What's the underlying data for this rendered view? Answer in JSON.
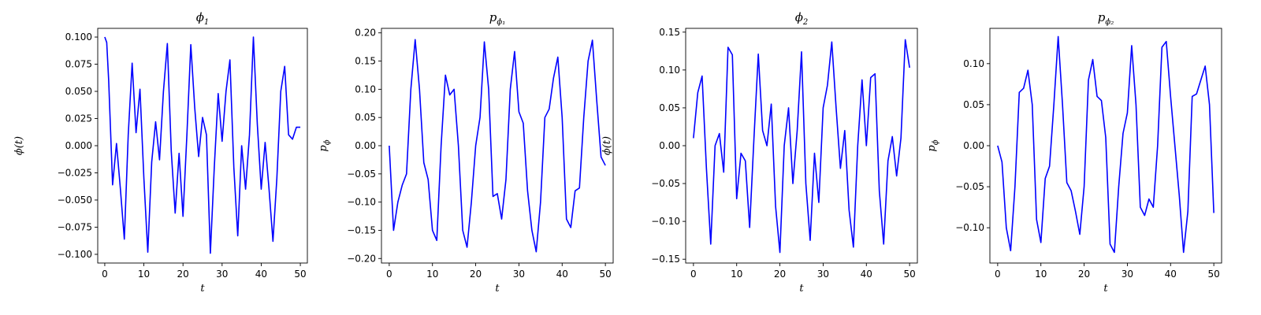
{
  "figure": {
    "background": "#ffffff",
    "line_color": "#0000ff"
  },
  "chart_data": [
    {
      "type": "line",
      "title": "ϕ",
      "title_sub": "1",
      "xlabel": "t",
      "ylabel": "ϕ(t)",
      "ylabel_sub": "",
      "xlim": [
        -1.8,
        51.8
      ],
      "ylim": [
        -0.108,
        0.108
      ],
      "xticks": [
        0,
        10,
        20,
        30,
        40,
        50
      ],
      "yticks": [
        -0.1,
        -0.075,
        -0.05,
        -0.025,
        0.0,
        0.025,
        0.05,
        0.075,
        0.1
      ],
      "ytick_labels": [
        "−0.100",
        "−0.075",
        "−0.050",
        "−0.025",
        "0.000",
        "0.025",
        "0.050",
        "0.075",
        "0.100"
      ],
      "series": [
        {
          "color": "#0000ff",
          "x": [
            0,
            0.5,
            1,
            2,
            3,
            4,
            5,
            6,
            7,
            8,
            9,
            10,
            11,
            12,
            13,
            14,
            15,
            16,
            17,
            18,
            19,
            20,
            21,
            22,
            23,
            24,
            25,
            26,
            27,
            28,
            29,
            30,
            31,
            32,
            33,
            34,
            35,
            36,
            37,
            38,
            39,
            40,
            41,
            42,
            43,
            44,
            45,
            46,
            47,
            48,
            49,
            50
          ],
          "y": [
            0.1,
            0.095,
            0.06,
            -0.036,
            0.002,
            -0.04,
            -0.086,
            0.01,
            0.076,
            0.012,
            0.052,
            -0.03,
            -0.098,
            -0.015,
            0.022,
            -0.013,
            0.05,
            0.094,
            -0.005,
            -0.062,
            -0.007,
            -0.065,
            0.01,
            0.093,
            0.035,
            -0.01,
            0.026,
            0.01,
            -0.099,
            -0.02,
            0.048,
            0.004,
            0.05,
            0.079,
            -0.02,
            -0.083,
            0.0,
            -0.04,
            0.01,
            0.1,
            0.02,
            -0.04,
            0.003,
            -0.04,
            -0.088,
            -0.03,
            0.05,
            0.073,
            0.01,
            0.006,
            0.017,
            0.017
          ]
        }
      ]
    },
    {
      "type": "line",
      "title": "p",
      "title_sub": "ϕ₁",
      "xlabel": "t",
      "ylabel": "p",
      "ylabel_sub": "ϕ",
      "xlim": [
        -1.8,
        51.8
      ],
      "ylim": [
        -0.208,
        0.208
      ],
      "xticks": [
        0,
        10,
        20,
        30,
        40,
        50
      ],
      "yticks": [
        -0.2,
        -0.15,
        -0.1,
        -0.05,
        0.0,
        0.05,
        0.1,
        0.15,
        0.2
      ],
      "ytick_labels": [
        "−0.20",
        "−0.15",
        "−0.10",
        "−0.05",
        "0.00",
        "0.05",
        "0.10",
        "0.15",
        "0.20"
      ],
      "series": [
        {
          "color": "#0000ff",
          "x": [
            0,
            1,
            2,
            3,
            4,
            5,
            6,
            7,
            8,
            9,
            10,
            11,
            12,
            13,
            14,
            15,
            16,
            17,
            18,
            19,
            20,
            21,
            22,
            23,
            24,
            25,
            26,
            27,
            28,
            29,
            30,
            31,
            32,
            33,
            34,
            35,
            36,
            37,
            38,
            39,
            40,
            41,
            42,
            43,
            44,
            45,
            46,
            47,
            48,
            49,
            50
          ],
          "y": [
            0.0,
            -0.15,
            -0.1,
            -0.07,
            -0.05,
            0.1,
            0.188,
            0.1,
            -0.03,
            -0.06,
            -0.15,
            -0.168,
            0.0,
            0.125,
            0.09,
            0.1,
            0.0,
            -0.15,
            -0.18,
            -0.1,
            0.0,
            0.05,
            0.184,
            0.1,
            -0.09,
            -0.085,
            -0.13,
            -0.06,
            0.1,
            0.167,
            0.06,
            0.04,
            -0.08,
            -0.15,
            -0.188,
            -0.1,
            0.05,
            0.065,
            0.12,
            0.157,
            0.05,
            -0.13,
            -0.145,
            -0.08,
            -0.075,
            0.05,
            0.15,
            0.187,
            0.08,
            -0.02,
            -0.035
          ]
        }
      ]
    },
    {
      "type": "line",
      "title": "ϕ",
      "title_sub": "2",
      "xlabel": "t",
      "ylabel": "ϕ(t)",
      "ylabel_sub": "",
      "xlim": [
        -1.8,
        51.8
      ],
      "ylim": [
        -0.155,
        0.155
      ],
      "xticks": [
        0,
        10,
        20,
        30,
        40,
        50
      ],
      "yticks": [
        -0.15,
        -0.1,
        -0.05,
        0.0,
        0.05,
        0.1,
        0.15
      ],
      "ytick_labels": [
        "−0.15",
        "−0.10",
        "−0.05",
        "0.00",
        "0.05",
        "0.10",
        "0.15"
      ],
      "series": [
        {
          "color": "#0000ff",
          "x": [
            0,
            1,
            2,
            3,
            4,
            5,
            6,
            7,
            8,
            9,
            10,
            11,
            12,
            13,
            14,
            15,
            16,
            17,
            18,
            19,
            20,
            21,
            22,
            23,
            24,
            25,
            26,
            27,
            28,
            29,
            30,
            31,
            32,
            33,
            34,
            35,
            36,
            37,
            38,
            39,
            40,
            41,
            42,
            43,
            44,
            45,
            46,
            47,
            48,
            49,
            50
          ],
          "y": [
            0.01,
            0.07,
            0.092,
            -0.03,
            -0.13,
            0.0,
            0.016,
            -0.035,
            0.13,
            0.12,
            -0.07,
            -0.01,
            -0.02,
            -0.108,
            0.01,
            0.121,
            0.02,
            0.0,
            0.055,
            -0.08,
            -0.141,
            0.0,
            0.05,
            -0.05,
            0.02,
            0.124,
            -0.05,
            -0.125,
            -0.01,
            -0.075,
            0.05,
            0.08,
            0.137,
            0.05,
            -0.03,
            0.02,
            -0.085,
            -0.134,
            0.0,
            0.087,
            0.0,
            0.09,
            0.095,
            -0.06,
            -0.13,
            -0.02,
            0.012,
            -0.04,
            0.01,
            0.14,
            0.103
          ]
        }
      ]
    },
    {
      "type": "line",
      "title": "p",
      "title_sub": "ϕ₂",
      "xlabel": "t",
      "ylabel": "p",
      "ylabel_sub": "ϕ",
      "xlim": [
        -1.8,
        51.8
      ],
      "ylim": [
        -0.143,
        0.143
      ],
      "xticks": [
        0,
        10,
        20,
        30,
        40,
        50
      ],
      "yticks": [
        -0.1,
        -0.05,
        0.0,
        0.05,
        0.1
      ],
      "ytick_labels": [
        "−0.10",
        "−0.05",
        "0.00",
        "0.05",
        "0.10"
      ],
      "series": [
        {
          "color": "#0000ff",
          "x": [
            0,
            1,
            2,
            3,
            4,
            5,
            6,
            7,
            8,
            9,
            10,
            11,
            12,
            13,
            14,
            15,
            16,
            17,
            18,
            19,
            20,
            21,
            22,
            23,
            24,
            25,
            26,
            27,
            28,
            29,
            30,
            31,
            32,
            33,
            34,
            35,
            36,
            37,
            38,
            39,
            40,
            41,
            42,
            43,
            44,
            45,
            46,
            47,
            48,
            49,
            50
          ],
          "y": [
            0.0,
            -0.02,
            -0.1,
            -0.128,
            -0.05,
            0.065,
            0.07,
            0.092,
            0.05,
            -0.09,
            -0.118,
            -0.04,
            -0.025,
            0.05,
            0.133,
            0.05,
            -0.045,
            -0.055,
            -0.08,
            -0.108,
            -0.05,
            0.08,
            0.105,
            0.06,
            0.055,
            0.01,
            -0.12,
            -0.13,
            -0.05,
            0.015,
            0.04,
            0.122,
            0.05,
            -0.075,
            -0.085,
            -0.065,
            -0.075,
            0.0,
            0.12,
            0.127,
            0.06,
            0.0,
            -0.06,
            -0.13,
            -0.08,
            0.06,
            0.063,
            0.08,
            0.097,
            0.05,
            -0.082
          ]
        }
      ]
    }
  ]
}
